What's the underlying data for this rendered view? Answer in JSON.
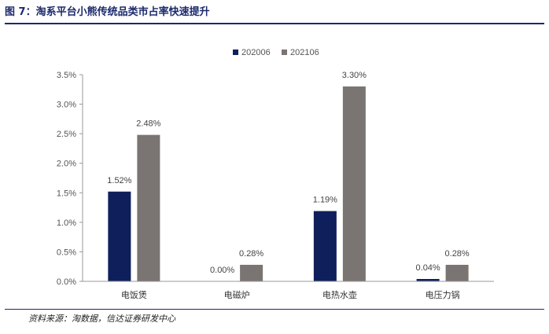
{
  "figure": {
    "title": "图 7：淘系平台小熊传统品类市占率快速提升",
    "source": "资料来源：淘数据，信达证券研发中心"
  },
  "chart_data": {
    "type": "bar",
    "categories": [
      "电饭煲",
      "电磁炉",
      "电热水壶",
      "电压力锅"
    ],
    "series": [
      {
        "name": "202006",
        "values": [
          1.52,
          0.0,
          1.19,
          0.04
        ],
        "labels": [
          "1.52%",
          "0.00%",
          "1.19%",
          "0.04%"
        ],
        "color": "#0f1f5c"
      },
      {
        "name": "202106",
        "values": [
          2.48,
          0.28,
          3.3,
          0.28
        ],
        "labels": [
          "2.48%",
          "0.28%",
          "3.30%",
          "0.28%"
        ],
        "color": "#7a7472"
      }
    ],
    "ylim": [
      0,
      3.5
    ],
    "yticks": [
      0,
      0.5,
      1.0,
      1.5,
      2.0,
      2.5,
      3.0,
      3.5
    ],
    "ytick_labels": [
      "0.0%",
      "0.5%",
      "1.0%",
      "1.5%",
      "2.0%",
      "2.5%",
      "3.0%",
      "3.5%"
    ],
    "grid": false,
    "legend": "top-center"
  }
}
